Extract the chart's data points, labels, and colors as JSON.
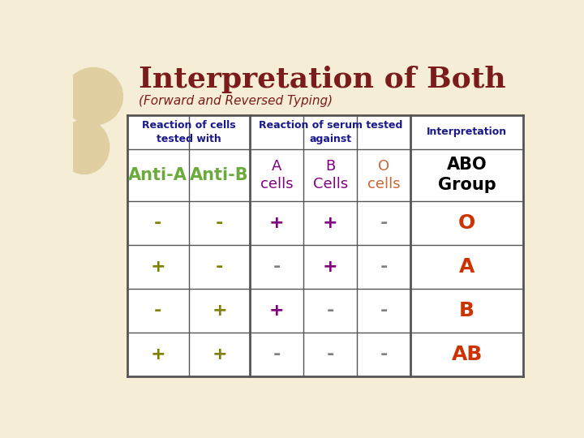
{
  "title": "Interpretation of Both",
  "subtitle": "(Forward and Reversed Typing)",
  "title_color": "#7B1C1C",
  "subtitle_color": "#7B1C1C",
  "background_color": "#F5EDD6",
  "header1_col01": "Reaction of cells\ntested with",
  "header1_col24": "Reaction of serum tested\nagainst",
  "header1_col5": "Interpretation",
  "header1_text_color": "#1A1A8C",
  "col_headers": [
    "Anti-A",
    "Anti-B",
    "A\ncells",
    "B\nCells",
    "O\ncells",
    "ABO\nGroup"
  ],
  "col_header_colors": [
    "#6AAB3C",
    "#6AAB3C",
    "#800080",
    "#800080",
    "#CC6633",
    "#000000"
  ],
  "rows": [
    [
      "-",
      "-",
      "+",
      "+",
      "-",
      "O"
    ],
    [
      "+",
      "-",
      "-",
      "+",
      "-",
      "A"
    ],
    [
      "-",
      "+",
      "+",
      "-",
      "-",
      "B"
    ],
    [
      "+",
      "+",
      "-",
      "-",
      "-",
      "AB"
    ]
  ],
  "col01_color": "#808000",
  "col23_plus_color": "#800080",
  "col23_minus_color": "#808080",
  "col4_color": "#808080",
  "col5_color": "#CC3300",
  "table_border_color": "#555555",
  "table_bg": "#FFFFFF"
}
